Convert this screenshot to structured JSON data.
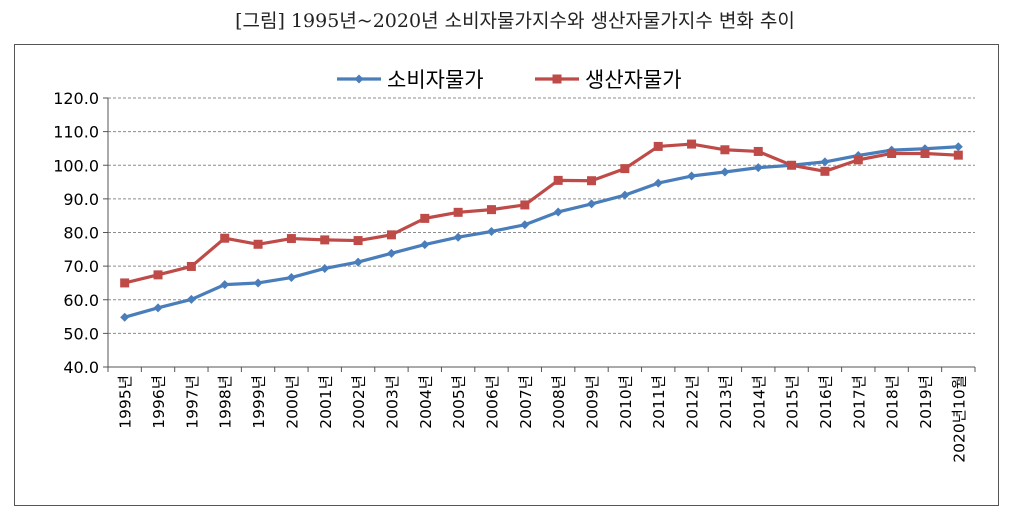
{
  "title": "[그림] 1995년~2020년 소비자물가지수와 생산자물가지수 변화 추이",
  "chart_data": {
    "type": "line",
    "categories": [
      "1995년",
      "1996년",
      "1997년",
      "1998년",
      "1999년",
      "2000년",
      "2001년",
      "2002년",
      "2003년",
      "2004년",
      "2005년",
      "2006년",
      "2007년",
      "2008년",
      "2009년",
      "2010년",
      "2011년",
      "2012년",
      "2013년",
      "2014년",
      "2015년",
      "2016년",
      "2017년",
      "2018년",
      "2019년",
      "2020년10월"
    ],
    "series": [
      {
        "name": "소비자물가",
        "color": "#4a7ebb",
        "marker": "diamond",
        "values": [
          54.8,
          57.6,
          60.1,
          64.5,
          65.0,
          66.6,
          69.3,
          71.2,
          73.8,
          76.4,
          78.6,
          80.3,
          82.3,
          86.1,
          88.5,
          91.1,
          94.7,
          96.8,
          98.0,
          99.3,
          100.0,
          101.0,
          102.9,
          104.5,
          104.9,
          105.5
        ]
      },
      {
        "name": "생산자물가",
        "color": "#be4b48",
        "marker": "square",
        "values": [
          65.0,
          67.4,
          69.9,
          78.3,
          76.5,
          78.2,
          77.8,
          77.6,
          79.3,
          84.2,
          86.0,
          86.8,
          88.2,
          95.5,
          95.4,
          99.0,
          105.6,
          106.3,
          104.6,
          104.1,
          100.0,
          98.2,
          101.6,
          103.5,
          103.5,
          103.0
        ]
      }
    ],
    "y_ticks": [
      "40.0",
      "50.0",
      "60.0",
      "70.0",
      "80.0",
      "90.0",
      "100.0",
      "110.0",
      "120.0"
    ],
    "ylim": [
      40,
      120
    ],
    "grid": true,
    "legend": "top-center"
  }
}
